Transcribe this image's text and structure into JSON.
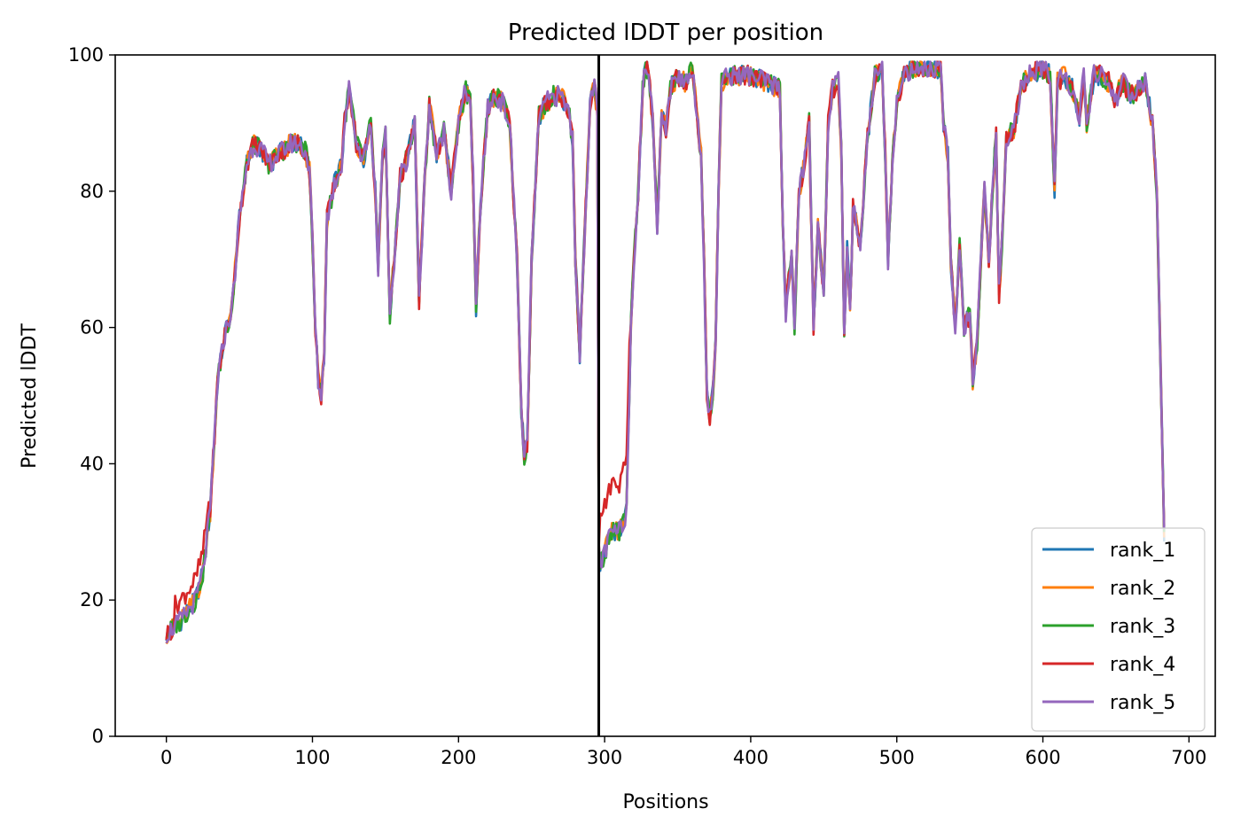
{
  "chart_data": {
    "type": "line",
    "title": "Predicted lDDT per position",
    "xlabel": "Positions",
    "ylabel": "Predicted lDDT",
    "xlim": [
      -35,
      718
    ],
    "ylim": [
      0,
      100
    ],
    "xticks": [
      0,
      100,
      200,
      300,
      400,
      500,
      600,
      700
    ],
    "yticks": [
      0,
      20,
      40,
      60,
      80,
      100
    ],
    "grid": false,
    "legend_position": "lower-right",
    "vline": {
      "x": 296,
      "color": "#000000"
    },
    "base": {
      "x": [
        0,
        10,
        20,
        25,
        30,
        35,
        40,
        45,
        50,
        55,
        60,
        65,
        70,
        75,
        80,
        85,
        90,
        95,
        98,
        100,
        102,
        104,
        106,
        108,
        110,
        115,
        120,
        122,
        125,
        128,
        130,
        135,
        140,
        143,
        145,
        148,
        150,
        153,
        156,
        160,
        165,
        170,
        173,
        176,
        180,
        185,
        190,
        195,
        200,
        205,
        208,
        210,
        212,
        215,
        220,
        225,
        230,
        235,
        240,
        243,
        245,
        247,
        250,
        255,
        260,
        265,
        270,
        275,
        278,
        280,
        283,
        286,
        290,
        293,
        295,
        296,
        297,
        300,
        305,
        310,
        315,
        318,
        320,
        323,
        326,
        328,
        330,
        333,
        336,
        339,
        342,
        345,
        350,
        355,
        360,
        363,
        366,
        368,
        370,
        372,
        374,
        376,
        378,
        380,
        385,
        390,
        400,
        410,
        420,
        422,
        424,
        426,
        428,
        430,
        433,
        436,
        440,
        443,
        446,
        450,
        453,
        456,
        460,
        462,
        464,
        466,
        468,
        470,
        475,
        480,
        485,
        490,
        492,
        494,
        497,
        500,
        505,
        510,
        520,
        530,
        532,
        535,
        537,
        540,
        543,
        546,
        550,
        552,
        555,
        558,
        560,
        563,
        566,
        568,
        570,
        572,
        575,
        580,
        585,
        590,
        600,
        605,
        608,
        610,
        615,
        620,
        625,
        628,
        630,
        635,
        640,
        645,
        650,
        652,
        655,
        660,
        665,
        670,
        675,
        678,
        680,
        683
      ],
      "y": [
        15,
        17,
        20,
        24,
        33,
        52,
        59,
        63,
        76,
        84,
        87,
        86,
        84,
        85,
        86,
        87,
        87,
        86,
        83,
        73,
        60,
        52,
        50,
        56,
        76,
        81,
        84,
        90,
        95,
        91,
        87,
        85,
        90,
        80,
        69,
        85,
        88,
        62,
        70,
        82,
        85,
        90,
        64,
        78,
        93,
        85,
        89,
        80,
        90,
        95,
        93,
        82,
        63,
        78,
        92,
        94,
        93,
        90,
        70,
        48,
        41,
        43,
        70,
        91,
        93,
        94,
        94,
        92,
        88,
        70,
        56,
        72,
        93,
        95,
        92,
        28,
        25,
        27,
        30,
        30,
        33,
        60,
        70,
        80,
        95,
        98,
        98,
        90,
        75,
        92,
        89,
        95,
        97,
        96,
        98,
        92,
        85,
        70,
        50,
        47,
        50,
        58,
        80,
        96,
        97,
        97,
        97,
        96,
        95,
        75,
        62,
        67,
        70,
        60,
        80,
        83,
        90,
        60,
        75,
        65,
        90,
        95,
        96,
        86,
        60,
        72,
        62,
        78,
        72,
        88,
        97,
        98,
        86,
        70,
        85,
        93,
        97,
        98,
        98,
        98,
        90,
        85,
        70,
        60,
        72,
        60,
        62,
        52,
        58,
        72,
        80,
        70,
        82,
        88,
        65,
        72,
        88,
        89,
        95,
        97,
        98,
        97,
        80,
        96,
        97,
        95,
        91,
        97,
        90,
        97,
        97,
        96,
        93,
        95,
        96,
        94,
        95,
        96,
        90,
        80,
        60,
        30
      ]
    },
    "series": [
      {
        "name": "rank_1",
        "color": "#1f77b4",
        "seed": 1
      },
      {
        "name": "rank_2",
        "color": "#ff7f0e",
        "seed": 2
      },
      {
        "name": "rank_3",
        "color": "#2ca02c",
        "seed": 3
      },
      {
        "name": "rank_4",
        "color": "#d62728",
        "seed": 4
      },
      {
        "name": "rank_5",
        "color": "#9467bd",
        "seed": 5
      }
    ]
  }
}
